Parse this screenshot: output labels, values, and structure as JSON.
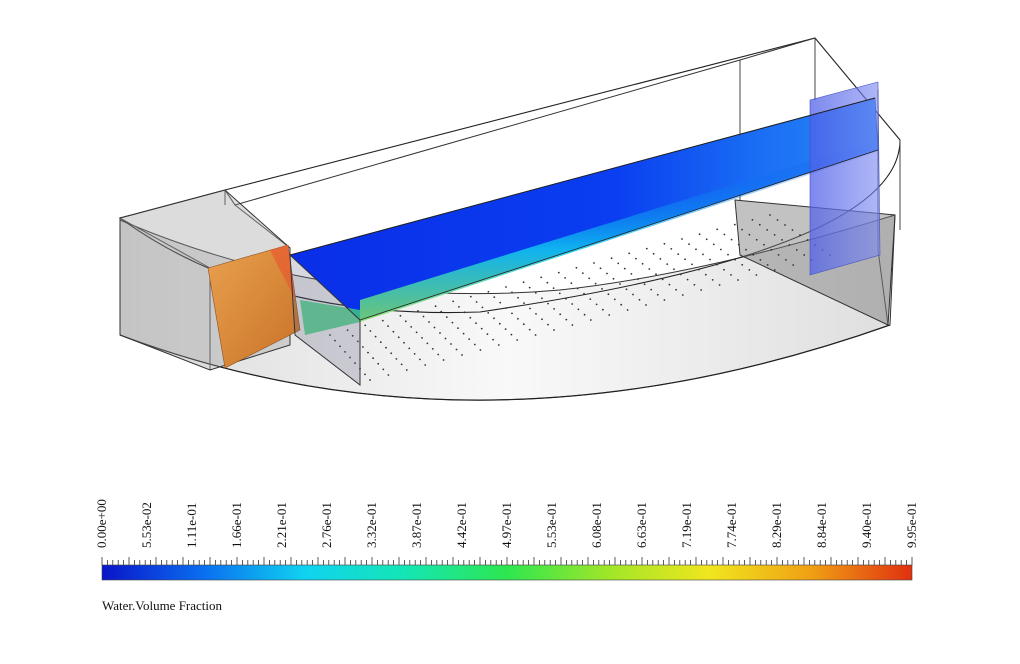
{
  "legend": {
    "title": "Water.Volume Fraction",
    "ticks": [
      "0.00e+00",
      "5.53e-02",
      "1.11e-01",
      "1.66e-01",
      "2.21e-01",
      "2.76e-01",
      "3.32e-01",
      "3.87e-01",
      "4.42e-01",
      "4.97e-01",
      "5.53e-01",
      "6.08e-01",
      "6.63e-01",
      "7.19e-01",
      "7.74e-01",
      "8.29e-01",
      "8.84e-01",
      "9.40e-01",
      "9.95e-01"
    ],
    "colors": [
      "#0a14c8",
      "#0a6ef0",
      "#10d2f0",
      "#14e6b4",
      "#2ee650",
      "#a0e628",
      "#f0e61e",
      "#f0a014",
      "#e03010"
    ]
  },
  "scene": {
    "domain_color_left": "#e0803a",
    "domain_color_jet": "#0a2ee0",
    "domain_color_right": "#6070ee"
  }
}
